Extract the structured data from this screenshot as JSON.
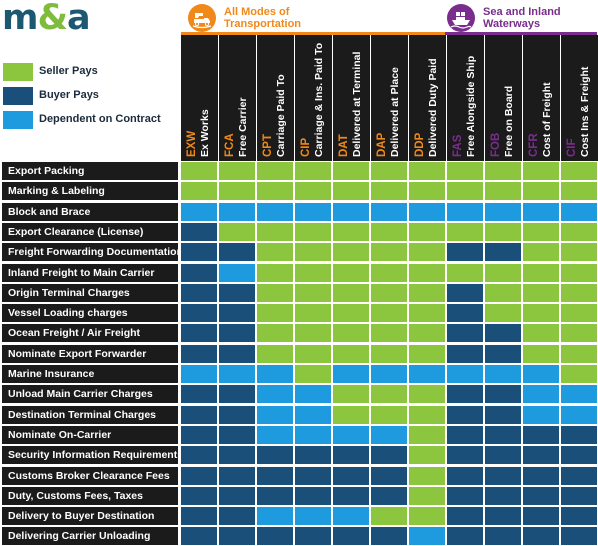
{
  "brand": {
    "logo_m": "m",
    "logo_amp": "&",
    "logo_a": "a"
  },
  "modes": {
    "all": {
      "line1": "All Modes of",
      "line2": "Transportation",
      "icon": "truck-plane-ship-icon",
      "color": "#f0891a"
    },
    "sea": {
      "line1": "Sea and Inland",
      "line2": "Waterways",
      "icon": "cargo-ship-icon",
      "color": "#7a2d8c"
    }
  },
  "legend": [
    {
      "key": "S",
      "label": "Seller Pays",
      "color": "#8cc63f"
    },
    {
      "key": "B",
      "label": "Buyer Pays",
      "color": "#1a4f7a"
    },
    {
      "key": "D",
      "label": "Dependent on Contract",
      "color": "#1e9bde"
    }
  ],
  "chart_data": {
    "type": "table",
    "columns": [
      {
        "code": "EXW",
        "name": "Ex Works",
        "mode": "all"
      },
      {
        "code": "FCA",
        "name": "Free Carrier",
        "mode": "all"
      },
      {
        "code": "CPT",
        "name": "Carriage Paid To",
        "mode": "all"
      },
      {
        "code": "CIP",
        "name": "Carriage & Ins. Paid To",
        "mode": "all"
      },
      {
        "code": "DAT",
        "name": "Delivered at Terminal",
        "mode": "all"
      },
      {
        "code": "DAP",
        "name": "Delivered at Place",
        "mode": "all"
      },
      {
        "code": "DDP",
        "name": "Delivered Duty Paid",
        "mode": "all"
      },
      {
        "code": "FAS",
        "name": "Free Alongside Ship",
        "mode": "sea"
      },
      {
        "code": "FOB",
        "name": "Free on Board",
        "mode": "sea"
      },
      {
        "code": "CFR",
        "name": "Cost of Freight",
        "mode": "sea"
      },
      {
        "code": "CIF",
        "name": "Cost Ins & Freight",
        "mode": "sea"
      }
    ],
    "rows": [
      {
        "label": "Export Packing",
        "values": [
          "S",
          "S",
          "S",
          "S",
          "S",
          "S",
          "S",
          "S",
          "S",
          "S",
          "S"
        ]
      },
      {
        "label": "Marking & Labeling",
        "values": [
          "S",
          "S",
          "S",
          "S",
          "S",
          "S",
          "S",
          "S",
          "S",
          "S",
          "S"
        ]
      },
      {
        "label": "Block and Brace",
        "values": [
          "D",
          "D",
          "D",
          "D",
          "D",
          "D",
          "D",
          "D",
          "D",
          "D",
          "D"
        ]
      },
      {
        "label": "Export Clearance (License)",
        "values": [
          "B",
          "S",
          "S",
          "S",
          "S",
          "S",
          "S",
          "S",
          "S",
          "S",
          "S"
        ]
      },
      {
        "label": "Freight Forwarding Documentation",
        "values": [
          "B",
          "B",
          "S",
          "S",
          "S",
          "S",
          "S",
          "B",
          "B",
          "S",
          "S"
        ]
      },
      {
        "label": "Inland Freight to Main Carrier",
        "values": [
          "B",
          "D",
          "S",
          "S",
          "S",
          "S",
          "S",
          "S",
          "S",
          "S",
          "S"
        ]
      },
      {
        "label": "Origin Terminal Charges",
        "values": [
          "B",
          "B",
          "S",
          "S",
          "S",
          "S",
          "S",
          "B",
          "S",
          "S",
          "S"
        ]
      },
      {
        "label": "Vessel Loading charges",
        "values": [
          "B",
          "B",
          "S",
          "S",
          "S",
          "S",
          "S",
          "B",
          "S",
          "S",
          "S"
        ]
      },
      {
        "label": "Ocean Freight / Air Freight",
        "values": [
          "B",
          "B",
          "S",
          "S",
          "S",
          "S",
          "S",
          "B",
          "B",
          "S",
          "S"
        ]
      },
      {
        "label": "Nominate Export Forwarder",
        "values": [
          "B",
          "B",
          "S",
          "S",
          "S",
          "S",
          "S",
          "B",
          "B",
          "S",
          "S"
        ]
      },
      {
        "label": "Marine Insurance",
        "values": [
          "D",
          "D",
          "D",
          "S",
          "D",
          "D",
          "D",
          "D",
          "D",
          "D",
          "S"
        ]
      },
      {
        "label": "Unload Main Carrier Charges",
        "values": [
          "B",
          "B",
          "D",
          "D",
          "S",
          "S",
          "S",
          "B",
          "B",
          "D",
          "D"
        ]
      },
      {
        "label": "Destination Terminal Charges",
        "values": [
          "B",
          "B",
          "D",
          "D",
          "S",
          "S",
          "S",
          "B",
          "B",
          "D",
          "D"
        ]
      },
      {
        "label": "Nominate On-Carrier",
        "values": [
          "B",
          "B",
          "D",
          "D",
          "D",
          "D",
          "S",
          "B",
          "B",
          "B",
          "B"
        ]
      },
      {
        "label": "Security Information Requirements",
        "values": [
          "B",
          "B",
          "B",
          "B",
          "B",
          "B",
          "S",
          "B",
          "B",
          "B",
          "B"
        ]
      },
      {
        "label": "Customs Broker Clearance Fees",
        "values": [
          "B",
          "B",
          "B",
          "B",
          "B",
          "B",
          "S",
          "B",
          "B",
          "B",
          "B"
        ]
      },
      {
        "label": "Duty, Customs Fees, Taxes",
        "values": [
          "B",
          "B",
          "B",
          "B",
          "B",
          "B",
          "S",
          "B",
          "B",
          "B",
          "B"
        ]
      },
      {
        "label": "Delivery to Buyer Destination",
        "values": [
          "B",
          "B",
          "D",
          "D",
          "D",
          "S",
          "S",
          "B",
          "B",
          "B",
          "B"
        ]
      },
      {
        "label": "Delivering Carrier Unloading",
        "values": [
          "B",
          "B",
          "B",
          "B",
          "B",
          "B",
          "D",
          "B",
          "B",
          "B",
          "B"
        ]
      }
    ]
  }
}
